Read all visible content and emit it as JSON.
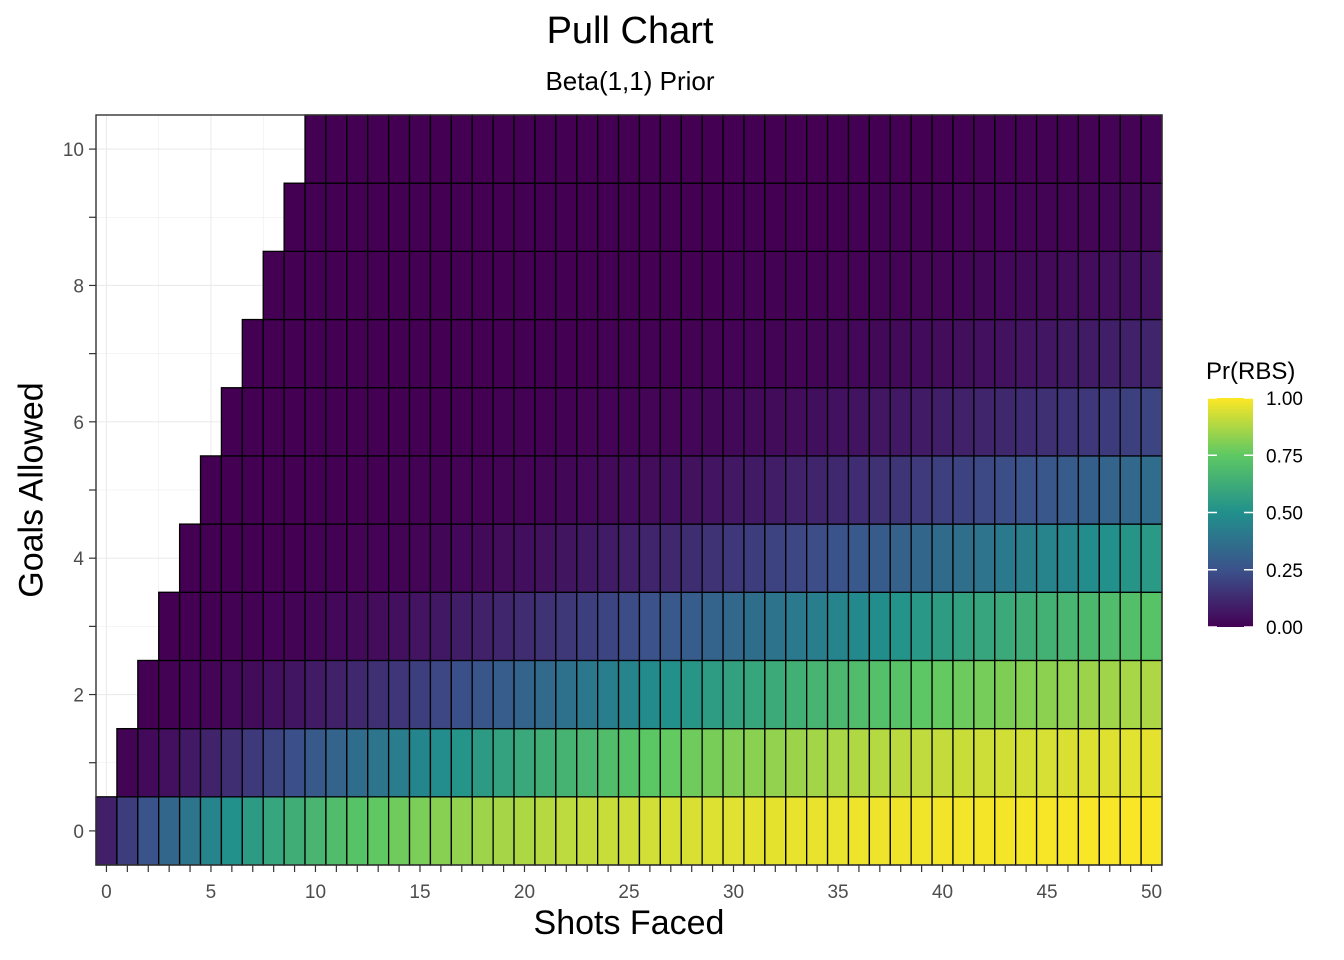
{
  "chart_data": {
    "type": "heatmap",
    "title": "Pull Chart",
    "subtitle": "Beta(1,1) Prior",
    "xlabel": "Shots Faced",
    "ylabel": "Goals Allowed",
    "xlim": [
      -0.5,
      50.5
    ],
    "ylim": [
      -0.5,
      10.5
    ],
    "x_ticks": [
      "0",
      "5",
      "10",
      "15",
      "20",
      "25",
      "30",
      "35",
      "40",
      "45",
      "50"
    ],
    "y_ticks": [
      "0",
      "2",
      "4",
      "6",
      "8",
      "10"
    ],
    "cells": "one tile for every shots_faced x from 0 to 50 and goals_allowed y from 0 to 10 with y <= x; tile value = Pr(RBS)",
    "value_range": [
      0,
      1
    ],
    "grid": true,
    "legend": {
      "title": "Pr(RBS)",
      "position": "right",
      "labels": [
        "1.00",
        "0.75",
        "0.50",
        "0.25",
        "0.00"
      ],
      "colormap": "viridis"
    },
    "colors": [
      "#440154",
      "#3B528B",
      "#21908C",
      "#5DC863",
      "#FDE725"
    ]
  }
}
